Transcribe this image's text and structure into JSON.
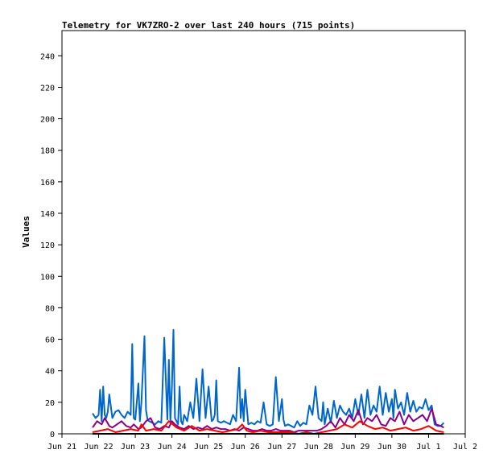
{
  "chart_data": {
    "type": "line",
    "title": "Telemetry for VK7ZRO-2 over last 240 hours (715 points)",
    "xlabel": "",
    "ylabel": "Values",
    "ylim": [
      0,
      256
    ],
    "xlim": [
      0,
      264
    ],
    "grid": false,
    "legend": "none",
    "y_ticks": [
      0,
      20,
      40,
      60,
      80,
      100,
      120,
      140,
      160,
      180,
      200,
      220,
      240
    ],
    "x_ticks": [
      {
        "label": "Jun 21",
        "x": 0
      },
      {
        "label": "Jun 22",
        "x": 24
      },
      {
        "label": "Jun 23",
        "x": 48
      },
      {
        "label": "Jun 24",
        "x": 72
      },
      {
        "label": "Jun 25",
        "x": 96
      },
      {
        "label": "Jun 26",
        "x": 120
      },
      {
        "label": "Jun 27",
        "x": 144
      },
      {
        "label": "Jun 28",
        "x": 168
      },
      {
        "label": "Jun 29",
        "x": 192
      },
      {
        "label": "Jun 30",
        "x": 216
      },
      {
        "label": "Jul 1",
        "x": 240
      },
      {
        "label": "Jul 2",
        "x": 264
      }
    ],
    "series": [
      {
        "color": "#0066cc",
        "x": [
          20,
          22,
          24,
          25,
          26,
          27,
          28,
          29,
          30,
          31,
          33,
          35,
          37,
          39,
          41,
          43,
          45,
          46,
          47,
          48,
          50,
          51,
          52,
          54,
          55,
          56,
          57,
          59,
          61,
          63,
          65,
          67,
          69,
          70,
          71,
          72,
          73,
          74,
          75,
          76,
          77,
          78,
          79,
          80,
          82,
          84,
          86,
          88,
          90,
          92,
          94,
          96,
          98,
          99,
          100,
          101,
          102,
          104,
          106,
          108,
          110,
          112,
          114,
          116,
          117,
          118,
          119,
          120,
          122,
          124,
          126,
          128,
          130,
          132,
          134,
          136,
          138,
          140,
          142,
          144,
          145,
          146,
          148,
          150,
          152,
          154,
          156,
          158,
          160,
          162,
          164,
          166,
          168,
          170,
          171,
          172,
          174,
          176,
          178,
          180,
          182,
          184,
          186,
          188,
          190,
          192,
          194,
          196,
          198,
          200,
          202,
          204,
          206,
          208,
          210,
          212,
          214,
          216,
          217,
          218,
          220,
          222,
          224,
          226,
          228,
          230,
          232,
          234,
          236,
          238,
          240,
          242,
          244,
          246,
          248,
          250
        ],
        "values": [
          13,
          10,
          12,
          28,
          8,
          30,
          12,
          10,
          14,
          25,
          10,
          14,
          15,
          12,
          10,
          14,
          12,
          57,
          10,
          9,
          32,
          8,
          20,
          62,
          15,
          9,
          8,
          7,
          6,
          8,
          7,
          61,
          9,
          47,
          8,
          30,
          66,
          10,
          8,
          6,
          30,
          8,
          6,
          12,
          8,
          20,
          10,
          35,
          8,
          41,
          10,
          30,
          8,
          9,
          12,
          34,
          8,
          7,
          8,
          7,
          6,
          12,
          8,
          42,
          10,
          22,
          8,
          28,
          6,
          7,
          6,
          8,
          7,
          20,
          6,
          5,
          6,
          36,
          8,
          22,
          9,
          5,
          6,
          5,
          4,
          8,
          5,
          7,
          6,
          18,
          12,
          30,
          10,
          8,
          20,
          6,
          16,
          7,
          21,
          10,
          18,
          14,
          12,
          16,
          10,
          22,
          12,
          25,
          10,
          28,
          12,
          18,
          14,
          30,
          12,
          26,
          14,
          22,
          10,
          28,
          16,
          20,
          12,
          26,
          14,
          21,
          14,
          17,
          16,
          22,
          15,
          18,
          6,
          5,
          5,
          7
        ]
      },
      {
        "color": "#880088",
        "x": [
          20,
          23,
          26,
          28,
          31,
          33,
          36,
          39,
          42,
          45,
          47,
          48,
          50,
          52,
          55,
          58,
          61,
          64,
          67,
          70,
          72,
          74,
          77,
          80,
          83,
          86,
          89,
          92,
          95,
          98,
          101,
          104,
          107,
          110,
          113,
          116,
          119,
          122,
          125,
          128,
          131,
          134,
          137,
          140,
          143,
          146,
          149,
          152,
          155,
          158,
          161,
          164,
          167,
          170,
          173,
          176,
          179,
          182,
          185,
          188,
          191,
          194,
          197,
          200,
          203,
          206,
          209,
          212,
          215,
          218,
          221,
          224,
          227,
          230,
          233,
          236,
          239,
          242,
          245,
          248,
          250
        ],
        "values": [
          4,
          8,
          6,
          10,
          5,
          4,
          6,
          8,
          5,
          4,
          6,
          5,
          3,
          4,
          8,
          10,
          4,
          3,
          5,
          4,
          8,
          6,
          4,
          3,
          5,
          3,
          4,
          3,
          5,
          3,
          4,
          3,
          3,
          2,
          3,
          2,
          4,
          3,
          2,
          2,
          3,
          2,
          2,
          3,
          2,
          2,
          2,
          1,
          2,
          2,
          2,
          2,
          2,
          3,
          5,
          8,
          4,
          10,
          6,
          12,
          8,
          15,
          6,
          10,
          8,
          12,
          6,
          5,
          10,
          8,
          14,
          6,
          12,
          8,
          10,
          12,
          8,
          16,
          6,
          5,
          4
        ]
      },
      {
        "color": "#ff0000",
        "x": [
          20,
          25,
          30,
          35,
          40,
          45,
          50,
          52,
          55,
          60,
          65,
          70,
          75,
          80,
          85,
          90,
          95,
          100,
          105,
          110,
          115,
          118,
          121,
          125,
          130,
          135,
          140,
          145,
          150,
          155,
          160,
          165,
          170,
          175,
          180,
          185,
          190,
          195,
          200,
          205,
          210,
          215,
          220,
          225,
          230,
          235,
          240,
          245,
          250
        ],
        "values": [
          1,
          2,
          3,
          1,
          2,
          3,
          2,
          6,
          2,
          3,
          2,
          8,
          4,
          2,
          5,
          2,
          3,
          2,
          1,
          2,
          3,
          6,
          2,
          1,
          2,
          1,
          1,
          1,
          1,
          0,
          1,
          0,
          1,
          2,
          3,
          6,
          4,
          8,
          5,
          3,
          4,
          2,
          3,
          4,
          2,
          3,
          5,
          2,
          1
        ]
      },
      {
        "color": "#000000",
        "x": [
          20,
          250
        ],
        "values": [
          0,
          0
        ]
      }
    ]
  }
}
